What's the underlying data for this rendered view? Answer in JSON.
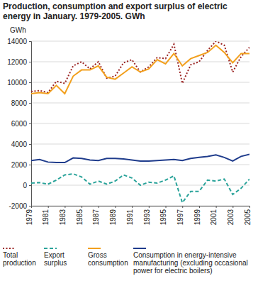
{
  "chart_data": {
    "type": "line",
    "title": "Production, consumption and export surplus of electric energy in January. 1979-2005. GWh",
    "y_label": "GWh",
    "x": [
      1979,
      1980,
      1981,
      1982,
      1983,
      1984,
      1985,
      1986,
      1987,
      1988,
      1989,
      1990,
      1991,
      1992,
      1993,
      1994,
      1995,
      1996,
      1997,
      1998,
      1999,
      2000,
      2001,
      2002,
      2003,
      2004,
      2005
    ],
    "xlim": [
      1979,
      2005
    ],
    "xticks": [
      1979,
      1981,
      1983,
      1985,
      1987,
      1989,
      1991,
      1993,
      1995,
      1997,
      1999,
      2001,
      2003,
      2005
    ],
    "ylim": [
      -2000,
      14000
    ],
    "yticks": [
      -2000,
      0,
      2000,
      4000,
      6000,
      8000,
      10000,
      12000,
      14000
    ],
    "grid": true,
    "legend": "bottom",
    "series": [
      {
        "name": "Total production",
        "color": "#9b2423",
        "line_style": "dotted",
        "values": [
          9100,
          9200,
          9000,
          10100,
          9900,
          11600,
          12000,
          11300,
          12000,
          10400,
          10600,
          11900,
          12200,
          11000,
          11500,
          12400,
          12300,
          13700,
          9900,
          11700,
          12000,
          13100,
          14000,
          13600,
          11000,
          12500,
          13400
        ]
      },
      {
        "name": "Export surplus",
        "color": "#2aa39a",
        "line_style": "dashed",
        "values": [
          200,
          250,
          100,
          500,
          1000,
          1100,
          800,
          100,
          400,
          100,
          400,
          1000,
          700,
          0,
          300,
          200,
          500,
          900,
          -1700,
          -600,
          -600,
          500,
          400,
          600,
          -900,
          -300,
          600
        ]
      },
      {
        "name": "Gross consumption",
        "color": "#f2a01e",
        "line_style": "solid",
        "values": [
          8900,
          9000,
          8900,
          9700,
          8900,
          10600,
          11200,
          11200,
          11600,
          10500,
          10300,
          10900,
          11500,
          11000,
          11300,
          12200,
          11800,
          12800,
          11600,
          12300,
          12600,
          12900,
          13600,
          12900,
          11900,
          12800,
          12800
        ]
      },
      {
        "name": "Consumption in energy-intensive manufacturing (excluding occasional power for electric boilers)",
        "color": "#1f3c8c",
        "line_style": "solid",
        "values": [
          2400,
          2500,
          2250,
          2200,
          2200,
          2650,
          2600,
          2450,
          2400,
          2600,
          2600,
          2550,
          2450,
          2350,
          2350,
          2400,
          2450,
          2500,
          2400,
          2600,
          2700,
          2800,
          2950,
          2700,
          2350,
          2800,
          3000
        ]
      }
    ]
  }
}
